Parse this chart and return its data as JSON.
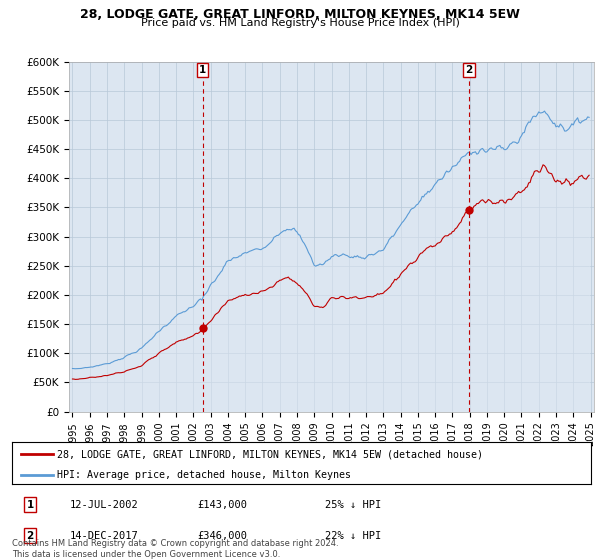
{
  "title": "28, LODGE GATE, GREAT LINFORD, MILTON KEYNES, MK14 5EW",
  "subtitle": "Price paid vs. HM Land Registry's House Price Index (HPI)",
  "legend_line1": "28, LODGE GATE, GREAT LINFORD, MILTON KEYNES, MK14 5EW (detached house)",
  "legend_line2": "HPI: Average price, detached house, Milton Keynes",
  "marker1_date": "12-JUL-2002",
  "marker1_price": 143000,
  "marker1_label": "25% ↓ HPI",
  "marker2_date": "14-DEC-2017",
  "marker2_price": 346000,
  "marker2_label": "22% ↓ HPI",
  "footer": "Contains HM Land Registry data © Crown copyright and database right 2024.\nThis data is licensed under the Open Government Licence v3.0.",
  "hpi_color": "#5b9bd5",
  "hpi_fill_color": "#dce6f1",
  "price_color": "#c00000",
  "marker_color": "#c00000",
  "bg_color": "#dce6f1",
  "ylim": [
    0,
    600000
  ],
  "yticks": [
    0,
    50000,
    100000,
    150000,
    200000,
    250000,
    300000,
    350000,
    400000,
    450000,
    500000,
    550000,
    600000
  ],
  "ytick_labels": [
    "£0",
    "£50K",
    "£100K",
    "£150K",
    "£200K",
    "£250K",
    "£300K",
    "£350K",
    "£400K",
    "£450K",
    "£500K",
    "£550K",
    "£600K"
  ],
  "xtick_years": [
    1995,
    1996,
    1997,
    1998,
    1999,
    2000,
    2001,
    2002,
    2003,
    2004,
    2005,
    2006,
    2007,
    2008,
    2009,
    2010,
    2011,
    2012,
    2013,
    2014,
    2015,
    2016,
    2017,
    2018,
    2019,
    2020,
    2021,
    2022,
    2023,
    2024,
    2025
  ],
  "m1_x": 2002.54,
  "m2_x": 2017.96
}
